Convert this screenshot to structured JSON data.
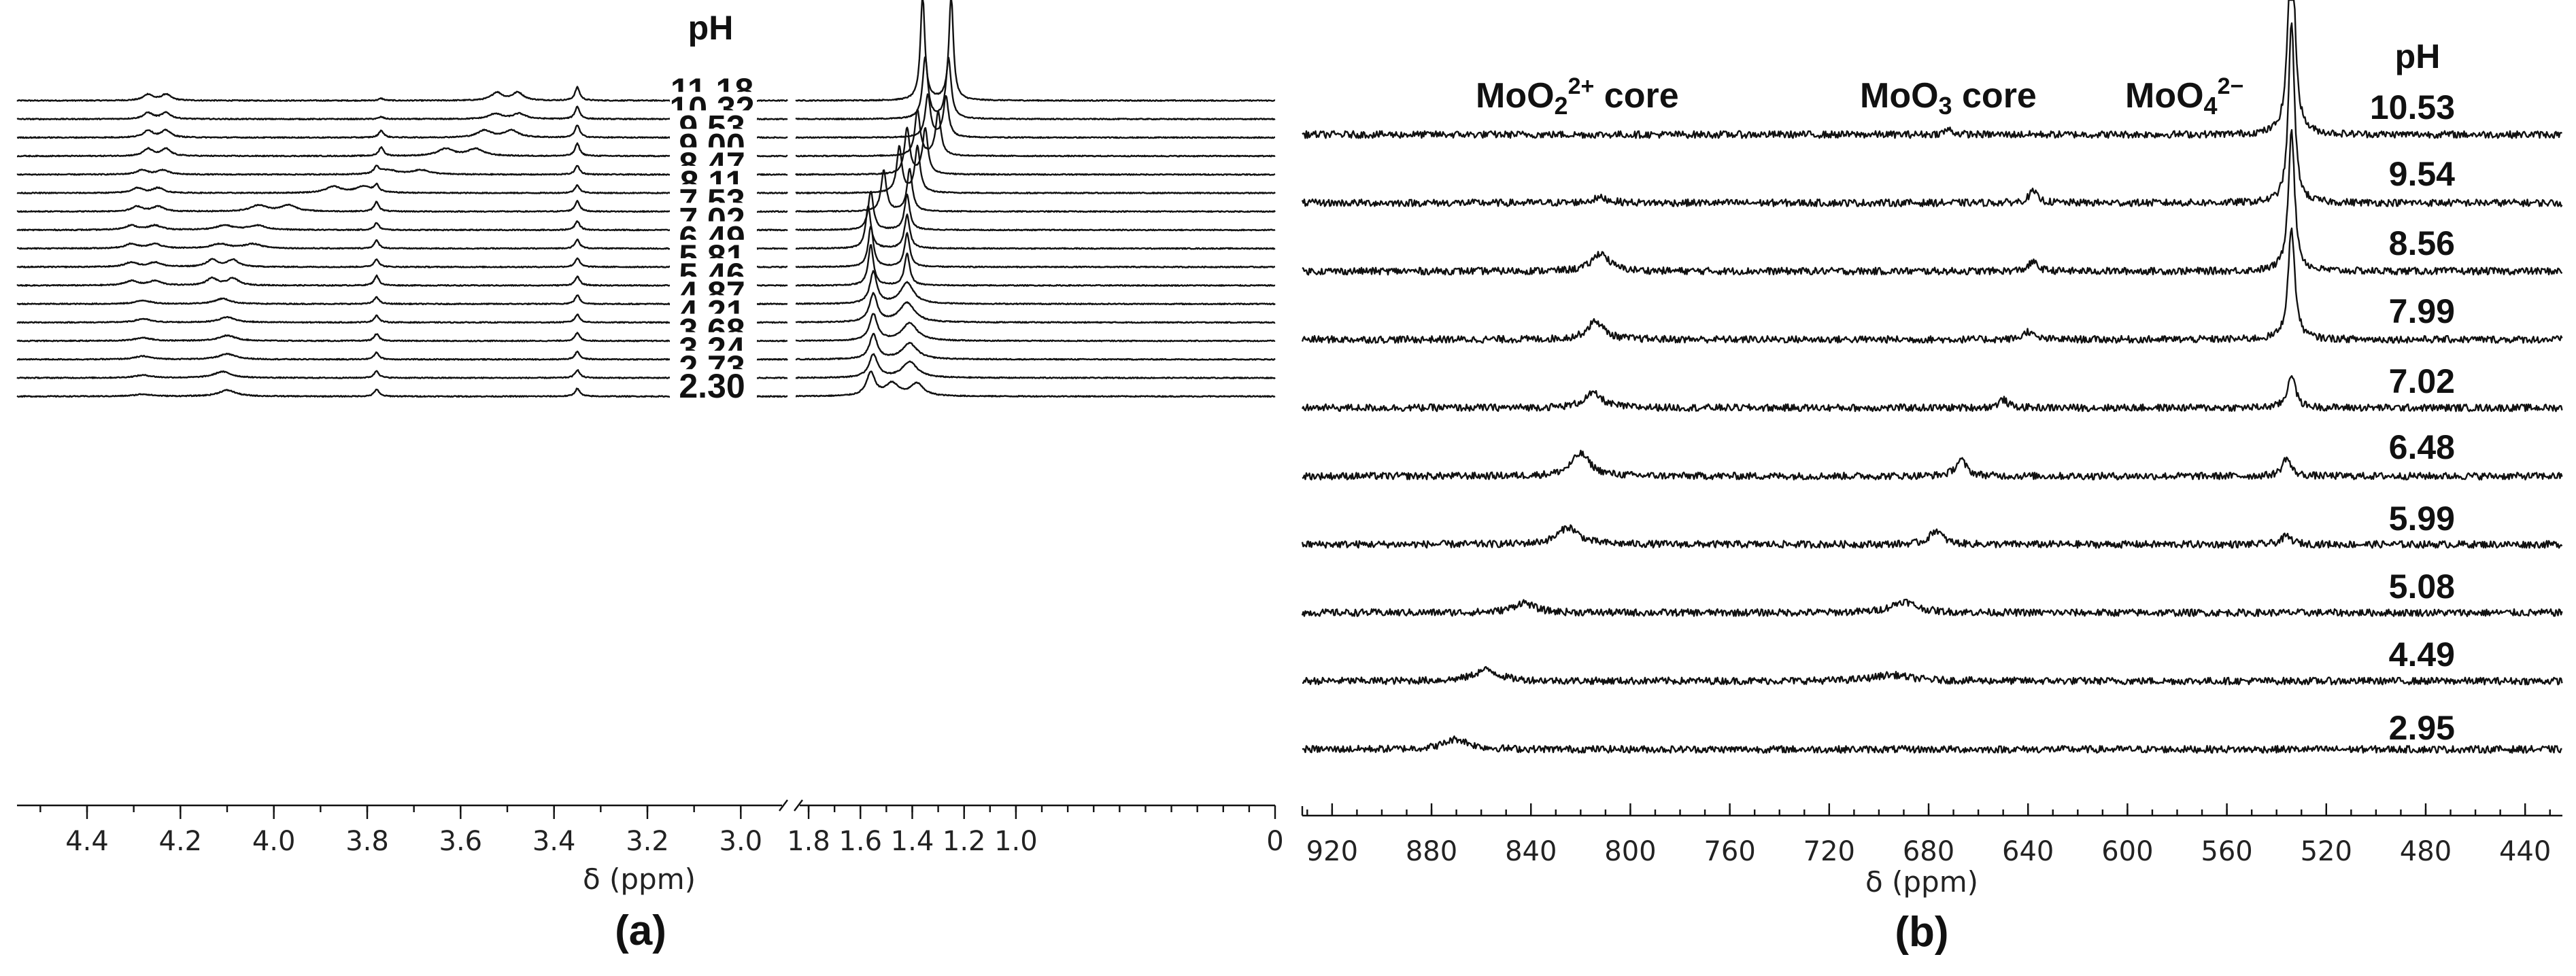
{
  "chart_data": [
    {
      "panel": "(a)",
      "type": "line",
      "title": "",
      "xlabel": "δ (ppm)",
      "ylabel": "",
      "legend_header": "pH",
      "x_break": {
        "from": 3.0,
        "to": 1.8
      },
      "x_segments": [
        {
          "xlim": [
            4.55,
            2.9
          ]
        },
        {
          "xlim": [
            1.85,
            0.0
          ]
        }
      ],
      "tick_labels": [
        "4.4",
        "4.2",
        "4.0",
        "3.8",
        "3.6",
        "3.4",
        "3.2",
        "3.0",
        "1.8",
        "1.6",
        "1.4",
        "1.2",
        "1.0",
        "0"
      ],
      "pH_values": [
        "11.18",
        "10.32",
        "9.53",
        "9.00",
        "8.47",
        "8.11",
        "7.53",
        "7.02",
        "6.49",
        "5.81",
        "5.46",
        "4.87",
        "4.21",
        "3.68",
        "3.24",
        "2.73",
        "2.30"
      ],
      "traces": [
        {
          "pH": "11.18",
          "peaks": [
            [
              4.25,
              0.35,
              0.012,
              "d"
            ],
            [
              3.77,
              0.12,
              0.006
            ],
            [
              3.5,
              0.45,
              0.014,
              "d"
            ],
            [
              3.35,
              0.75,
              0.006
            ],
            [
              1.36,
              6.0,
              0.01
            ],
            [
              1.25,
              6.0,
              0.01
            ]
          ]
        },
        {
          "pH": "10.32",
          "peaks": [
            [
              4.25,
              0.35,
              0.012,
              "d"
            ],
            [
              3.77,
              0.12,
              0.006
            ],
            [
              3.5,
              0.3,
              0.016,
              "d"
            ],
            [
              3.35,
              0.7,
              0.006
            ],
            [
              1.35,
              3.5,
              0.012
            ],
            [
              1.26,
              3.4,
              0.012
            ]
          ]
        },
        {
          "pH": "9.53",
          "peaks": [
            [
              4.25,
              0.4,
              0.012,
              "d"
            ],
            [
              3.77,
              0.4,
              0.006
            ],
            [
              3.52,
              0.4,
              0.018,
              "d"
            ],
            [
              3.35,
              0.7,
              0.006
            ],
            [
              1.34,
              2.4,
              0.012
            ],
            [
              1.27,
              2.3,
              0.012
            ]
          ]
        },
        {
          "pH": "9.00",
          "peaks": [
            [
              4.25,
              0.4,
              0.012,
              "d"
            ],
            [
              3.77,
              0.5,
              0.006
            ],
            [
              3.6,
              0.4,
              0.02,
              "d"
            ],
            [
              3.35,
              0.7,
              0.006
            ],
            [
              1.38,
              2.6,
              0.012
            ],
            [
              1.3,
              2.5,
              0.012
            ]
          ]
        },
        {
          "pH": "8.47",
          "peaks": [
            [
              4.26,
              0.25,
              0.014,
              "d"
            ],
            [
              3.78,
              0.4,
              0.006
            ],
            [
              3.72,
              0.25,
              0.022,
              "d"
            ],
            [
              3.35,
              0.5,
              0.006
            ],
            [
              1.42,
              2.6,
              0.012
            ],
            [
              1.35,
              2.6,
              0.012
            ]
          ]
        },
        {
          "pH": "8.11",
          "peaks": [
            [
              4.27,
              0.28,
              0.014,
              "d"
            ],
            [
              3.78,
              0.4,
              0.006
            ],
            [
              3.84,
              0.35,
              0.02,
              "d"
            ],
            [
              3.35,
              0.45,
              0.006
            ],
            [
              1.45,
              2.6,
              0.012
            ],
            [
              1.38,
              2.6,
              0.012
            ]
          ]
        },
        {
          "pH": "7.53",
          "peaks": [
            [
              4.27,
              0.28,
              0.014,
              "d"
            ],
            [
              3.78,
              0.55,
              0.006
            ],
            [
              4.0,
              0.35,
              0.02,
              "d"
            ],
            [
              3.35,
              0.6,
              0.006
            ],
            [
              1.51,
              2.3,
              0.012
            ],
            [
              1.41,
              2.4,
              0.012
            ]
          ]
        },
        {
          "pH": "7.02",
          "peaks": [
            [
              4.28,
              0.25,
              0.016,
              "d"
            ],
            [
              3.78,
              0.4,
              0.006
            ],
            [
              4.07,
              0.25,
              0.022,
              "d"
            ],
            [
              3.35,
              0.5,
              0.006
            ],
            [
              1.56,
              2.2,
              0.012
            ],
            [
              1.42,
              2.0,
              0.012
            ]
          ]
        },
        {
          "pH": "6.49",
          "peaks": [
            [
              4.28,
              0.25,
              0.016,
              "d"
            ],
            [
              3.78,
              0.45,
              0.006
            ],
            [
              4.08,
              0.25,
              0.022,
              "d"
            ],
            [
              3.35,
              0.5,
              0.006
            ],
            [
              1.57,
              2.4,
              0.012
            ],
            [
              1.42,
              1.9,
              0.012
            ]
          ]
        },
        {
          "pH": "5.81",
          "peaks": [
            [
              4.28,
              0.25,
              0.016,
              "d"
            ],
            [
              3.78,
              0.45,
              0.006
            ],
            [
              4.11,
              0.4,
              0.014,
              "d"
            ],
            [
              3.35,
              0.5,
              0.006
            ],
            [
              1.56,
              2.3,
              0.012
            ],
            [
              1.42,
              1.9,
              0.012
            ]
          ]
        },
        {
          "pH": "5.46",
          "peaks": [
            [
              4.28,
              0.25,
              0.016,
              "d"
            ],
            [
              3.78,
              0.55,
              0.006
            ],
            [
              4.11,
              0.4,
              0.014,
              "d"
            ],
            [
              3.35,
              0.5,
              0.006
            ],
            [
              1.56,
              2.3,
              0.012
            ],
            [
              1.42,
              1.8,
              0.012
            ]
          ]
        },
        {
          "pH": "4.87",
          "peaks": [
            [
              4.28,
              0.2,
              0.018
            ],
            [
              3.78,
              0.4,
              0.006
            ],
            [
              4.11,
              0.3,
              0.02
            ],
            [
              3.35,
              0.5,
              0.006
            ],
            [
              1.55,
              1.8,
              0.016
            ],
            [
              1.42,
              1.2,
              0.03
            ]
          ]
        },
        {
          "pH": "4.21",
          "peaks": [
            [
              4.28,
              0.2,
              0.018
            ],
            [
              3.78,
              0.4,
              0.006
            ],
            [
              4.1,
              0.3,
              0.02
            ],
            [
              3.35,
              0.45,
              0.006
            ],
            [
              1.55,
              1.6,
              0.018
            ],
            [
              1.42,
              1.1,
              0.035
            ]
          ]
        },
        {
          "pH": "3.68",
          "peaks": [
            [
              4.28,
              0.18,
              0.02
            ],
            [
              3.78,
              0.4,
              0.006
            ],
            [
              4.1,
              0.3,
              0.022
            ],
            [
              3.35,
              0.45,
              0.006
            ],
            [
              1.55,
              1.5,
              0.018
            ],
            [
              1.41,
              1.0,
              0.035
            ]
          ]
        },
        {
          "pH": "3.24",
          "peaks": [
            [
              4.28,
              0.18,
              0.02
            ],
            [
              3.78,
              0.4,
              0.006
            ],
            [
              4.1,
              0.3,
              0.022
            ],
            [
              3.35,
              0.45,
              0.006
            ],
            [
              1.55,
              1.4,
              0.018
            ],
            [
              1.41,
              0.9,
              0.035
            ]
          ]
        },
        {
          "pH": "2.73",
          "peaks": [
            [
              4.28,
              0.15,
              0.022
            ],
            [
              3.78,
              0.4,
              0.006
            ],
            [
              4.11,
              0.35,
              0.022
            ],
            [
              3.35,
              0.45,
              0.006
            ],
            [
              1.55,
              1.3,
              0.02
            ],
            [
              1.41,
              0.9,
              0.035
            ]
          ]
        },
        {
          "pH": "2.30",
          "peaks": [
            [
              4.28,
              0.12,
              0.022
            ],
            [
              3.78,
              0.4,
              0.006
            ],
            [
              4.1,
              0.35,
              0.022
            ],
            [
              3.35,
              0.45,
              0.006
            ],
            [
              1.56,
              1.3,
              0.02
            ],
            [
              1.43,
              0.7,
              0.03,
              "d"
            ]
          ]
        }
      ]
    },
    {
      "panel": "(b)",
      "type": "line",
      "title": "",
      "xlabel": "δ (ppm)",
      "ylabel": "",
      "legend_header": "pH",
      "xlim": [
        932,
        425
      ],
      "tick_labels": [
        "920",
        "880",
        "840",
        "800",
        "760",
        "720",
        "680",
        "640",
        "600",
        "560",
        "520",
        "480",
        "440"
      ],
      "annotations": [
        {
          "text": "core",
          "species": "MoO2 2+",
          "formula": [
            "MoO",
            "2",
            "2+"
          ],
          "x": 812
        },
        {
          "text": "core",
          "species": "MoO3",
          "formula": [
            "MoO",
            "3"
          ],
          "x": 650
        },
        {
          "text": "",
          "species": "MoO4 2−",
          "formula": [
            "MoO",
            "4",
            "2−"
          ],
          "x": 540
        }
      ],
      "pH_values": [
        "10.53",
        "9.54",
        "8.56",
        "7.99",
        "7.02",
        "6.48",
        "5.99",
        "5.08",
        "4.49",
        "2.95"
      ],
      "traces": [
        {
          "pH": "10.53",
          "peaks": [
            [
              534,
              12.0,
              1.4
            ],
            [
              672,
              0.25,
              2.0
            ]
          ]
        },
        {
          "pH": "9.54",
          "peaks": [
            [
              534,
              9.0,
              1.4
            ],
            [
              638,
              0.55,
              2.2
            ],
            [
              812,
              0.25,
              4.0
            ]
          ]
        },
        {
          "pH": "8.56",
          "peaks": [
            [
              534,
              7.0,
              1.5
            ],
            [
              638,
              0.45,
              2.2
            ],
            [
              812,
              0.9,
              4.0
            ]
          ]
        },
        {
          "pH": "7.99",
          "peaks": [
            [
              534,
              5.5,
              1.6
            ],
            [
              640,
              0.4,
              2.2
            ],
            [
              814,
              0.9,
              4.0
            ]
          ]
        },
        {
          "pH": "7.02",
          "peaks": [
            [
              534,
              1.7,
              1.8
            ],
            [
              650,
              0.4,
              2.2
            ],
            [
              815,
              0.7,
              4.5
            ]
          ]
        },
        {
          "pH": "6.48",
          "peaks": [
            [
              536,
              0.9,
              2.0
            ],
            [
              667,
              0.8,
              2.6
            ],
            [
              820,
              1.1,
              4.5
            ]
          ]
        },
        {
          "pH": "5.99",
          "peaks": [
            [
              536,
              0.4,
              2.5
            ],
            [
              677,
              0.7,
              3.0
            ],
            [
              825,
              0.85,
              5.0
            ]
          ]
        },
        {
          "pH": "5.08",
          "peaks": [
            [
              690,
              0.55,
              6.0
            ],
            [
              843,
              0.5,
              5.0
            ]
          ]
        },
        {
          "pH": "4.49",
          "peaks": [
            [
              695,
              0.3,
              9.0
            ],
            [
              858,
              0.55,
              6.0
            ]
          ]
        },
        {
          "pH": "2.95",
          "peaks": [
            [
              870,
              0.5,
              6.0
            ]
          ]
        }
      ]
    }
  ],
  "panel_labels": {
    "a": "(a)",
    "b": "(b)"
  },
  "colors": {
    "trace": "#111111",
    "axis": "#111111",
    "text": "#111111",
    "background": "#ffffff"
  }
}
